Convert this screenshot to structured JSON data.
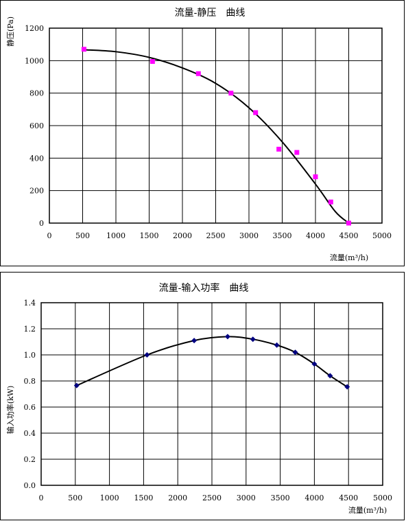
{
  "chart_data": [
    {
      "type": "scatter",
      "title": "流量-静压　曲线",
      "xlabel": "流量(m³/h)",
      "ylabel": "静压(Pa)",
      "xlim": [
        0,
        5000
      ],
      "ylim": [
        0,
        1200
      ],
      "xticks": [
        "0",
        "500",
        "1000",
        "1500",
        "2000",
        "2500",
        "3000",
        "3500",
        "4000",
        "4500",
        "5000"
      ],
      "yticks": [
        "0",
        "200",
        "400",
        "600",
        "800",
        "1000",
        "1200"
      ],
      "grid": true,
      "marker_color": "#ff00ff",
      "line_color": "#000000",
      "points": [
        {
          "x": 520,
          "y": 1070
        },
        {
          "x": 1550,
          "y": 995
        },
        {
          "x": 2240,
          "y": 920
        },
        {
          "x": 2730,
          "y": 800
        },
        {
          "x": 3100,
          "y": 680
        },
        {
          "x": 3450,
          "y": 455
        },
        {
          "x": 3720,
          "y": 435
        },
        {
          "x": 4000,
          "y": 285
        },
        {
          "x": 4230,
          "y": 130
        },
        {
          "x": 4500,
          "y": 0
        }
      ],
      "trend": [
        {
          "x": 520,
          "y": 1067
        },
        {
          "x": 1000,
          "y": 1055
        },
        {
          "x": 1500,
          "y": 1020
        },
        {
          "x": 2000,
          "y": 955
        },
        {
          "x": 2500,
          "y": 860
        },
        {
          "x": 3000,
          "y": 710
        },
        {
          "x": 3500,
          "y": 500
        },
        {
          "x": 4000,
          "y": 240
        },
        {
          "x": 4300,
          "y": 70
        },
        {
          "x": 4500,
          "y": 0
        }
      ]
    },
    {
      "type": "line",
      "title": "流量-输入功率　曲线",
      "xlabel": "流量(m³/h)",
      "ylabel": "输入功率(kW)",
      "xlim": [
        0,
        5000
      ],
      "ylim": [
        0,
        1.4
      ],
      "xticks": [
        "0",
        "500",
        "1000",
        "1500",
        "2000",
        "2500",
        "3000",
        "3500",
        "4000",
        "4500",
        "5000"
      ],
      "yticks": [
        "0.0",
        "0.2",
        "0.4",
        "0.6",
        "0.8",
        "1.0",
        "1.2",
        "1.4"
      ],
      "grid": true,
      "marker_color": "#000080",
      "line_color": "#000000",
      "points": [
        {
          "x": 520,
          "y": 0.765
        },
        {
          "x": 1550,
          "y": 1.0
        },
        {
          "x": 2240,
          "y": 1.11
        },
        {
          "x": 2730,
          "y": 1.14
        },
        {
          "x": 3100,
          "y": 1.12
        },
        {
          "x": 3450,
          "y": 1.075
        },
        {
          "x": 3720,
          "y": 1.02
        },
        {
          "x": 4000,
          "y": 0.93
        },
        {
          "x": 4230,
          "y": 0.84
        },
        {
          "x": 4480,
          "y": 0.755
        }
      ]
    }
  ]
}
